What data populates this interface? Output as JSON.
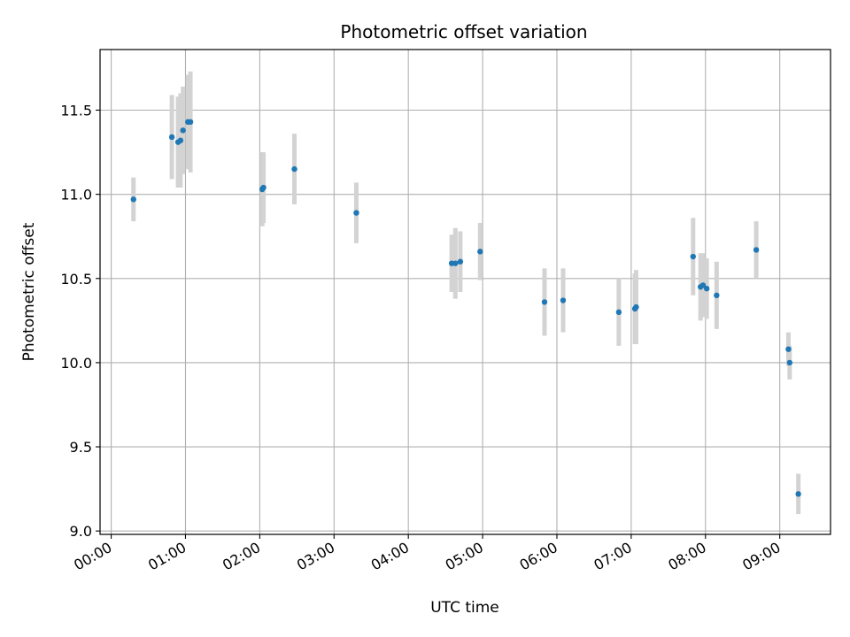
{
  "chart_data": {
    "type": "scatter",
    "title": "Photometric offset variation",
    "xlabel": "UTC time",
    "ylabel": "Photometric offset",
    "x_unit": "hours",
    "xlim": [
      "-00:09",
      "09:41"
    ],
    "ylim": [
      8.98,
      11.86
    ],
    "x_ticks": [
      "00:00",
      "01:00",
      "02:00",
      "03:00",
      "04:00",
      "05:00",
      "06:00",
      "07:00",
      "08:00",
      "09:00"
    ],
    "y_ticks": [
      "9.0",
      "9.5",
      "10.0",
      "10.5",
      "11.0",
      "11.5"
    ],
    "grid": true,
    "colors": {
      "marker": "#1f77b4",
      "errorbar": "#d3d3d3",
      "grid": "#b0b0b0"
    },
    "series": [
      {
        "points": [
          {
            "time": "00:18",
            "y": 10.97,
            "err": 0.13
          },
          {
            "time": "00:49",
            "y": 11.34,
            "err": 0.25
          },
          {
            "time": "00:54",
            "y": 11.31,
            "err": 0.27
          },
          {
            "time": "00:56",
            "y": 11.32,
            "err": 0.28
          },
          {
            "time": "00:58",
            "y": 11.38,
            "err": 0.26
          },
          {
            "time": "01:02",
            "y": 11.43,
            "err": 0.28
          },
          {
            "time": "01:04",
            "y": 11.43,
            "err": 0.3
          },
          {
            "time": "02:02",
            "y": 11.03,
            "err": 0.22
          },
          {
            "time": "02:03",
            "y": 11.04,
            "err": 0.21
          },
          {
            "time": "02:28",
            "y": 11.15,
            "err": 0.21
          },
          {
            "time": "03:18",
            "y": 10.89,
            "err": 0.18
          },
          {
            "time": "04:35",
            "y": 10.59,
            "err": 0.17
          },
          {
            "time": "04:38",
            "y": 10.59,
            "err": 0.21
          },
          {
            "time": "04:42",
            "y": 10.6,
            "err": 0.18
          },
          {
            "time": "04:58",
            "y": 10.66,
            "err": 0.17
          },
          {
            "time": "05:50",
            "y": 10.36,
            "err": 0.2
          },
          {
            "time": "06:05",
            "y": 10.37,
            "err": 0.19
          },
          {
            "time": "06:50",
            "y": 10.3,
            "err": 0.2
          },
          {
            "time": "07:03",
            "y": 10.32,
            "err": 0.21
          },
          {
            "time": "07:04",
            "y": 10.33,
            "err": 0.22
          },
          {
            "time": "07:50",
            "y": 10.63,
            "err": 0.23
          },
          {
            "time": "07:56",
            "y": 10.45,
            "err": 0.2
          },
          {
            "time": "07:58",
            "y": 10.46,
            "err": 0.19
          },
          {
            "time": "08:01",
            "y": 10.44,
            "err": 0.18
          },
          {
            "time": "08:09",
            "y": 10.4,
            "err": 0.2
          },
          {
            "time": "08:41",
            "y": 10.67,
            "err": 0.17
          },
          {
            "time": "09:07",
            "y": 10.08,
            "err": 0.1
          },
          {
            "time": "09:08",
            "y": 10.0,
            "err": 0.1
          },
          {
            "time": "09:15",
            "y": 9.22,
            "err": 0.12
          }
        ]
      }
    ]
  }
}
